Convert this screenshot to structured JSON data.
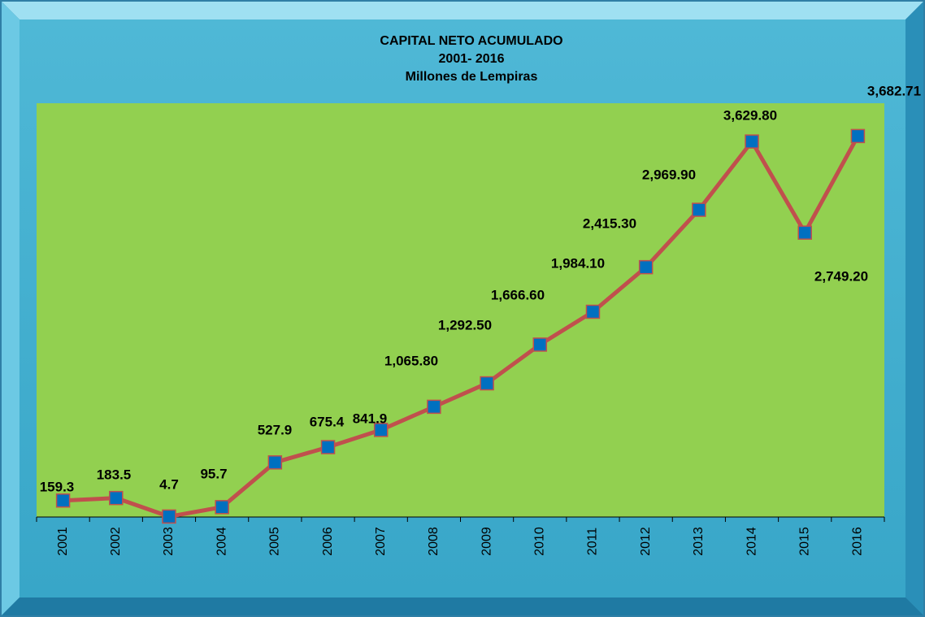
{
  "chart_data": {
    "type": "line",
    "title": "CAPITAL NETO ACUMULADO",
    "subtitle": "2001- 2016",
    "unit_label": "Millones  de Lempiras",
    "categories": [
      "2001",
      "2002",
      "2003",
      "2004",
      "2005",
      "2006",
      "2007",
      "2008",
      "2009",
      "2010",
      "2011",
      "2012",
      "2013",
      "2014",
      "2015",
      "2016"
    ],
    "series": [
      {
        "name": "Capital neto acumulado",
        "color": "#c0504d",
        "marker_color": "#0070c0",
        "values": [
          159.3,
          183.5,
          4.7,
          95.7,
          527.9,
          675.4,
          841.9,
          1065.8,
          1292.5,
          1666.6,
          1984.1,
          2415.3,
          2969.9,
          3629.8,
          2749.2,
          3682.71
        ],
        "value_labels": [
          "159.3",
          "183.5",
          "4.7",
          "95.7",
          "527.9",
          "675.4",
          "841.9",
          "1,065.80",
          "1,292.50",
          "1,666.60",
          "1,984.10",
          "2,415.30",
          "2,969.90",
          "3,629.80",
          "2,749.20",
          "3,682.71"
        ]
      }
    ],
    "ylim": [
      0,
      4000
    ],
    "plot_color": "#92d050"
  }
}
